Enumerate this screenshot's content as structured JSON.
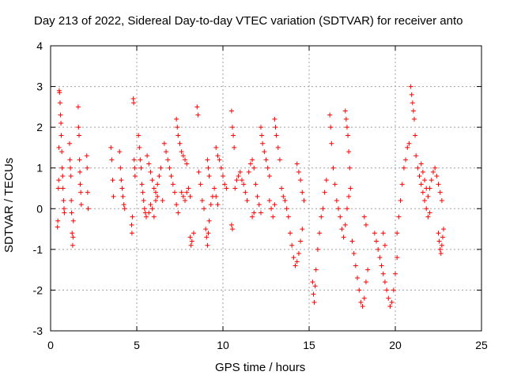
{
  "chart_data": {
    "type": "scatter",
    "title": "Day 213 of 2022, Sidereal Day-to-day VTEC variation (SDTVAR) for receiver anto",
    "xlabel": "GPS time / hours",
    "ylabel": "SDTVAR / TECUs",
    "xlim": [
      0,
      25
    ],
    "ylim": [
      -3,
      4
    ],
    "xticks": [
      0,
      5,
      10,
      15,
      20,
      25
    ],
    "yticks": [
      -3,
      -2,
      -1,
      0,
      1,
      2,
      3,
      4
    ],
    "grid": true,
    "marker": "+",
    "color": "#ff0000",
    "series": [
      {
        "name": "SDTVAR",
        "points": [
          [
            0.4,
            -0.45
          ],
          [
            0.42,
            -0.3
          ],
          [
            0.45,
            0.5
          ],
          [
            0.47,
            0.7
          ],
          [
            0.48,
            1.5
          ],
          [
            0.5,
            2.9
          ],
          [
            0.52,
            2.85
          ],
          [
            0.55,
            2.6
          ],
          [
            0.57,
            2.3
          ],
          [
            0.6,
            2.1
          ],
          [
            0.62,
            1.8
          ],
          [
            0.65,
            1.4
          ],
          [
            0.67,
            1.0
          ],
          [
            0.7,
            0.8
          ],
          [
            0.72,
            0.5
          ],
          [
            0.75,
            0.2
          ],
          [
            0.78,
            0.0
          ],
          [
            0.8,
            -0.1
          ],
          [
            1.1,
            1.6
          ],
          [
            1.12,
            1.2
          ],
          [
            1.15,
            1.0
          ],
          [
            1.18,
            0.8
          ],
          [
            1.2,
            0.2
          ],
          [
            1.22,
            -0.1
          ],
          [
            1.25,
            -0.6
          ],
          [
            1.28,
            -0.9
          ],
          [
            1.3,
            -0.7
          ],
          [
            1.32,
            -0.3
          ],
          [
            1.6,
            2.5
          ],
          [
            1.62,
            2.0
          ],
          [
            1.65,
            1.8
          ],
          [
            1.68,
            1.2
          ],
          [
            1.7,
            0.9
          ],
          [
            1.72,
            0.6
          ],
          [
            1.75,
            0.4
          ],
          [
            1.78,
            0.1
          ],
          [
            2.1,
            1.3
          ],
          [
            2.12,
            1.0
          ],
          [
            2.15,
            0.4
          ],
          [
            2.18,
            0.0
          ],
          [
            3.5,
            1.5
          ],
          [
            3.55,
            1.2
          ],
          [
            3.6,
            0.7
          ],
          [
            3.65,
            0.3
          ],
          [
            4.0,
            1.4
          ],
          [
            4.05,
            1.0
          ],
          [
            4.1,
            0.7
          ],
          [
            4.15,
            0.5
          ],
          [
            4.2,
            0.3
          ],
          [
            4.25,
            0.1
          ],
          [
            4.3,
            0.0
          ],
          [
            4.8,
            2.7
          ],
          [
            4.82,
            2.6
          ],
          [
            4.85,
            1.2
          ],
          [
            4.88,
            1.0
          ],
          [
            4.9,
            0.8
          ],
          [
            4.7,
            -0.4
          ],
          [
            4.72,
            -0.6
          ],
          [
            4.75,
            -0.2
          ],
          [
            5.1,
            1.8
          ],
          [
            5.15,
            1.5
          ],
          [
            5.2,
            1.2
          ],
          [
            5.25,
            1.0
          ],
          [
            5.3,
            0.6
          ],
          [
            5.35,
            0.4
          ],
          [
            5.4,
            0.2
          ],
          [
            5.45,
            0.0
          ],
          [
            5.5,
            -0.1
          ],
          [
            5.55,
            -0.2
          ],
          [
            5.6,
            1.3
          ],
          [
            5.7,
            1.1
          ],
          [
            5.8,
            0.9
          ],
          [
            5.9,
            0.7
          ],
          [
            6.0,
            0.5
          ],
          [
            6.1,
            0.4
          ],
          [
            6.2,
            0.6
          ],
          [
            6.3,
            0.8
          ],
          [
            6.4,
            1.0
          ],
          [
            6.5,
            0.2
          ],
          [
            5.7,
            -0.1
          ],
          [
            5.8,
            0.1
          ],
          [
            5.9,
            0.0
          ],
          [
            6.0,
            -0.2
          ],
          [
            6.1,
            0.2
          ],
          [
            6.2,
            0.3
          ],
          [
            6.6,
            1.6
          ],
          [
            6.7,
            1.4
          ],
          [
            6.8,
            1.2
          ],
          [
            6.9,
            1.0
          ],
          [
            7.0,
            0.8
          ],
          [
            7.1,
            0.6
          ],
          [
            7.2,
            0.4
          ],
          [
            7.3,
            0.1
          ],
          [
            7.4,
            -0.1
          ],
          [
            7.3,
            2.2
          ],
          [
            7.35,
            2.0
          ],
          [
            7.4,
            1.8
          ],
          [
            7.5,
            1.6
          ],
          [
            7.6,
            1.4
          ],
          [
            7.7,
            1.3
          ],
          [
            7.8,
            1.2
          ],
          [
            7.9,
            1.1
          ],
          [
            7.6,
            0.4
          ],
          [
            7.7,
            0.3
          ],
          [
            7.8,
            0.2
          ],
          [
            7.9,
            0.4
          ],
          [
            8.0,
            0.5
          ],
          [
            8.1,
            0.3
          ],
          [
            8.1,
            -0.7
          ],
          [
            8.15,
            -0.9
          ],
          [
            8.2,
            -0.8
          ],
          [
            8.3,
            -0.6
          ],
          [
            8.5,
            2.5
          ],
          [
            8.55,
            2.3
          ],
          [
            8.6,
            0.9
          ],
          [
            8.7,
            0.6
          ],
          [
            8.8,
            0.2
          ],
          [
            8.9,
            0.0
          ],
          [
            9.0,
            -0.5
          ],
          [
            9.05,
            -0.7
          ],
          [
            9.1,
            -0.9
          ],
          [
            9.15,
            -0.6
          ],
          [
            9.2,
            -0.3
          ],
          [
            9.3,
            0.1
          ],
          [
            9.4,
            0.3
          ],
          [
            9.5,
            0.5
          ],
          [
            9.6,
            0.3
          ],
          [
            9.7,
            0.1
          ],
          [
            9.1,
            1.2
          ],
          [
            9.15,
            1.0
          ],
          [
            9.2,
            0.8
          ],
          [
            9.6,
            1.5
          ],
          [
            9.7,
            1.3
          ],
          [
            9.8,
            1.2
          ],
          [
            9.9,
            1.0
          ],
          [
            10.0,
            0.8
          ],
          [
            10.1,
            0.6
          ],
          [
            10.2,
            0.5
          ],
          [
            10.5,
            2.4
          ],
          [
            10.55,
            2.0
          ],
          [
            10.6,
            1.8
          ],
          [
            10.65,
            1.5
          ],
          [
            10.5,
            -0.4
          ],
          [
            10.55,
            -0.5
          ],
          [
            10.7,
            0.5
          ],
          [
            10.8,
            0.7
          ],
          [
            10.9,
            0.8
          ],
          [
            11.0,
            0.9
          ],
          [
            11.1,
            0.7
          ],
          [
            11.2,
            0.6
          ],
          [
            11.3,
            0.4
          ],
          [
            11.4,
            0.2
          ],
          [
            11.5,
            0.9
          ],
          [
            11.6,
            1.1
          ],
          [
            11.7,
            1.2
          ],
          [
            11.8,
            1.0
          ],
          [
            11.9,
            0.6
          ],
          [
            12.0,
            0.3
          ],
          [
            12.1,
            0.1
          ],
          [
            12.2,
            -0.1
          ],
          [
            11.7,
            -0.2
          ],
          [
            11.8,
            -0.1
          ],
          [
            12.2,
            2.0
          ],
          [
            12.25,
            1.8
          ],
          [
            12.3,
            1.6
          ],
          [
            12.4,
            1.4
          ],
          [
            12.5,
            1.2
          ],
          [
            12.6,
            1.0
          ],
          [
            12.7,
            0.8
          ],
          [
            12.7,
            0.2
          ],
          [
            12.8,
            0.0
          ],
          [
            12.9,
            -0.2
          ],
          [
            13.0,
            0.1
          ],
          [
            13.0,
            2.2
          ],
          [
            13.05,
            2.0
          ],
          [
            13.1,
            1.8
          ],
          [
            13.2,
            1.5
          ],
          [
            13.3,
            1.2
          ],
          [
            13.4,
            0.5
          ],
          [
            13.5,
            0.3
          ],
          [
            13.6,
            0.2
          ],
          [
            13.7,
            0.0
          ],
          [
            13.8,
            -0.2
          ],
          [
            13.9,
            -0.6
          ],
          [
            14.0,
            -0.9
          ],
          [
            14.1,
            -1.2
          ],
          [
            14.2,
            -1.4
          ],
          [
            14.3,
            -1.3
          ],
          [
            14.4,
            -1.1
          ],
          [
            14.5,
            -0.8
          ],
          [
            14.6,
            -0.5
          ],
          [
            14.3,
            1.1
          ],
          [
            14.4,
            0.9
          ],
          [
            14.5,
            0.7
          ],
          [
            14.6,
            0.4
          ],
          [
            14.7,
            0.2
          ],
          [
            15.2,
            -1.8
          ],
          [
            15.25,
            -2.1
          ],
          [
            15.3,
            -2.3
          ],
          [
            15.35,
            -1.9
          ],
          [
            15.4,
            -1.5
          ],
          [
            15.5,
            -1.0
          ],
          [
            15.6,
            -0.6
          ],
          [
            15.7,
            -0.2
          ],
          [
            15.8,
            0.0
          ],
          [
            15.9,
            0.4
          ],
          [
            16.0,
            0.7
          ],
          [
            16.2,
            2.3
          ],
          [
            16.25,
            2.0
          ],
          [
            16.3,
            1.6
          ],
          [
            16.4,
            1.0
          ],
          [
            16.5,
            0.6
          ],
          [
            16.6,
            0.2
          ],
          [
            16.7,
            0.0
          ],
          [
            16.8,
            -0.2
          ],
          [
            16.9,
            -0.5
          ],
          [
            17.0,
            -0.7
          ],
          [
            17.1,
            -0.4
          ],
          [
            17.2,
            0.0
          ],
          [
            17.3,
            0.3
          ],
          [
            17.4,
            0.5
          ],
          [
            17.1,
            2.4
          ],
          [
            17.15,
            2.2
          ],
          [
            17.2,
            2.0
          ],
          [
            17.25,
            1.8
          ],
          [
            17.3,
            1.4
          ],
          [
            17.35,
            1.0
          ],
          [
            17.5,
            -0.8
          ],
          [
            17.6,
            -1.1
          ],
          [
            17.7,
            -1.4
          ],
          [
            17.8,
            -1.7
          ],
          [
            17.9,
            -2.0
          ],
          [
            18.0,
            -2.3
          ],
          [
            18.1,
            -2.4
          ],
          [
            18.2,
            -2.2
          ],
          [
            18.3,
            -1.8
          ],
          [
            18.4,
            -1.5
          ],
          [
            18.2,
            -0.2
          ],
          [
            18.3,
            -0.4
          ],
          [
            18.8,
            -0.6
          ],
          [
            18.9,
            -0.8
          ],
          [
            19.0,
            -1.0
          ],
          [
            19.1,
            -1.2
          ],
          [
            19.2,
            -1.4
          ],
          [
            19.3,
            -1.6
          ],
          [
            19.4,
            -1.8
          ],
          [
            19.5,
            -2.0
          ],
          [
            19.6,
            -2.2
          ],
          [
            19.7,
            -2.4
          ],
          [
            19.8,
            -2.3
          ],
          [
            19.9,
            -2.0
          ],
          [
            20.0,
            -1.6
          ],
          [
            20.1,
            -1.2
          ],
          [
            19.3,
            -0.6
          ],
          [
            19.4,
            -0.9
          ],
          [
            20.1,
            -0.6
          ],
          [
            20.2,
            -0.2
          ],
          [
            20.3,
            0.2
          ],
          [
            20.4,
            0.6
          ],
          [
            20.5,
            1.0
          ],
          [
            20.6,
            1.2
          ],
          [
            20.7,
            1.5
          ],
          [
            20.8,
            1.6
          ],
          [
            20.9,
            3.0
          ],
          [
            20.95,
            2.8
          ],
          [
            21.0,
            2.6
          ],
          [
            21.05,
            2.4
          ],
          [
            21.1,
            2.2
          ],
          [
            21.15,
            1.8
          ],
          [
            21.2,
            1.3
          ],
          [
            21.3,
            1.0
          ],
          [
            21.4,
            0.8
          ],
          [
            21.5,
            0.6
          ],
          [
            21.6,
            0.4
          ],
          [
            21.7,
            0.2
          ],
          [
            21.8,
            0.0
          ],
          [
            21.9,
            -0.2
          ],
          [
            22.0,
            -0.1
          ],
          [
            21.5,
            1.1
          ],
          [
            21.6,
            0.9
          ],
          [
            21.7,
            0.7
          ],
          [
            21.8,
            0.5
          ],
          [
            21.9,
            0.3
          ],
          [
            22.0,
            0.5
          ],
          [
            22.1,
            0.7
          ],
          [
            22.2,
            0.9
          ],
          [
            22.3,
            1.0
          ],
          [
            22.4,
            0.8
          ],
          [
            22.5,
            0.6
          ],
          [
            22.6,
            0.4
          ],
          [
            22.7,
            0.2
          ],
          [
            22.5,
            -0.6
          ],
          [
            22.55,
            -0.8
          ],
          [
            22.6,
            -1.0
          ],
          [
            22.65,
            -1.1
          ],
          [
            22.7,
            -0.9
          ],
          [
            22.75,
            -0.7
          ],
          [
            22.8,
            -0.5
          ]
        ]
      }
    ]
  }
}
